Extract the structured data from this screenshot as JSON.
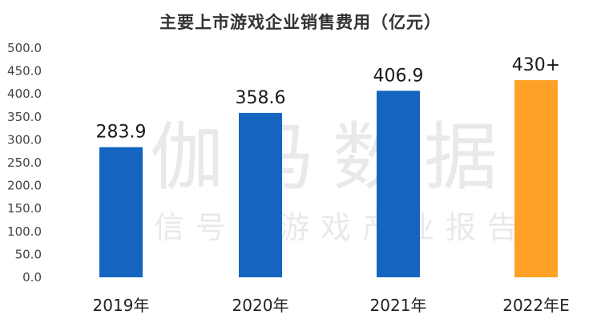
{
  "chart_data": {
    "type": "bar",
    "title": "主要上市游戏企业销售费用（亿元）",
    "categories": [
      "2019年",
      "2020年",
      "2021年",
      "2022年E"
    ],
    "values": [
      283.9,
      358.6,
      406.9,
      430
    ],
    "data_labels": [
      "283.9",
      "358.6",
      "406.9",
      "430+"
    ],
    "ylim": [
      0,
      500
    ],
    "yticks": [
      "0.0",
      "50.0",
      "100.0",
      "150.0",
      "200.0",
      "250.0",
      "300.0",
      "350.0",
      "400.0",
      "450.0",
      "500.0"
    ],
    "xlabel": "",
    "ylabel": "",
    "grid": false,
    "colors": [
      "#1565C0",
      "#1565C0",
      "#1565C0",
      "#FFA126"
    ]
  },
  "watermark": {
    "main": "伽马数据",
    "sub": "微信号：游戏产业报告"
  }
}
